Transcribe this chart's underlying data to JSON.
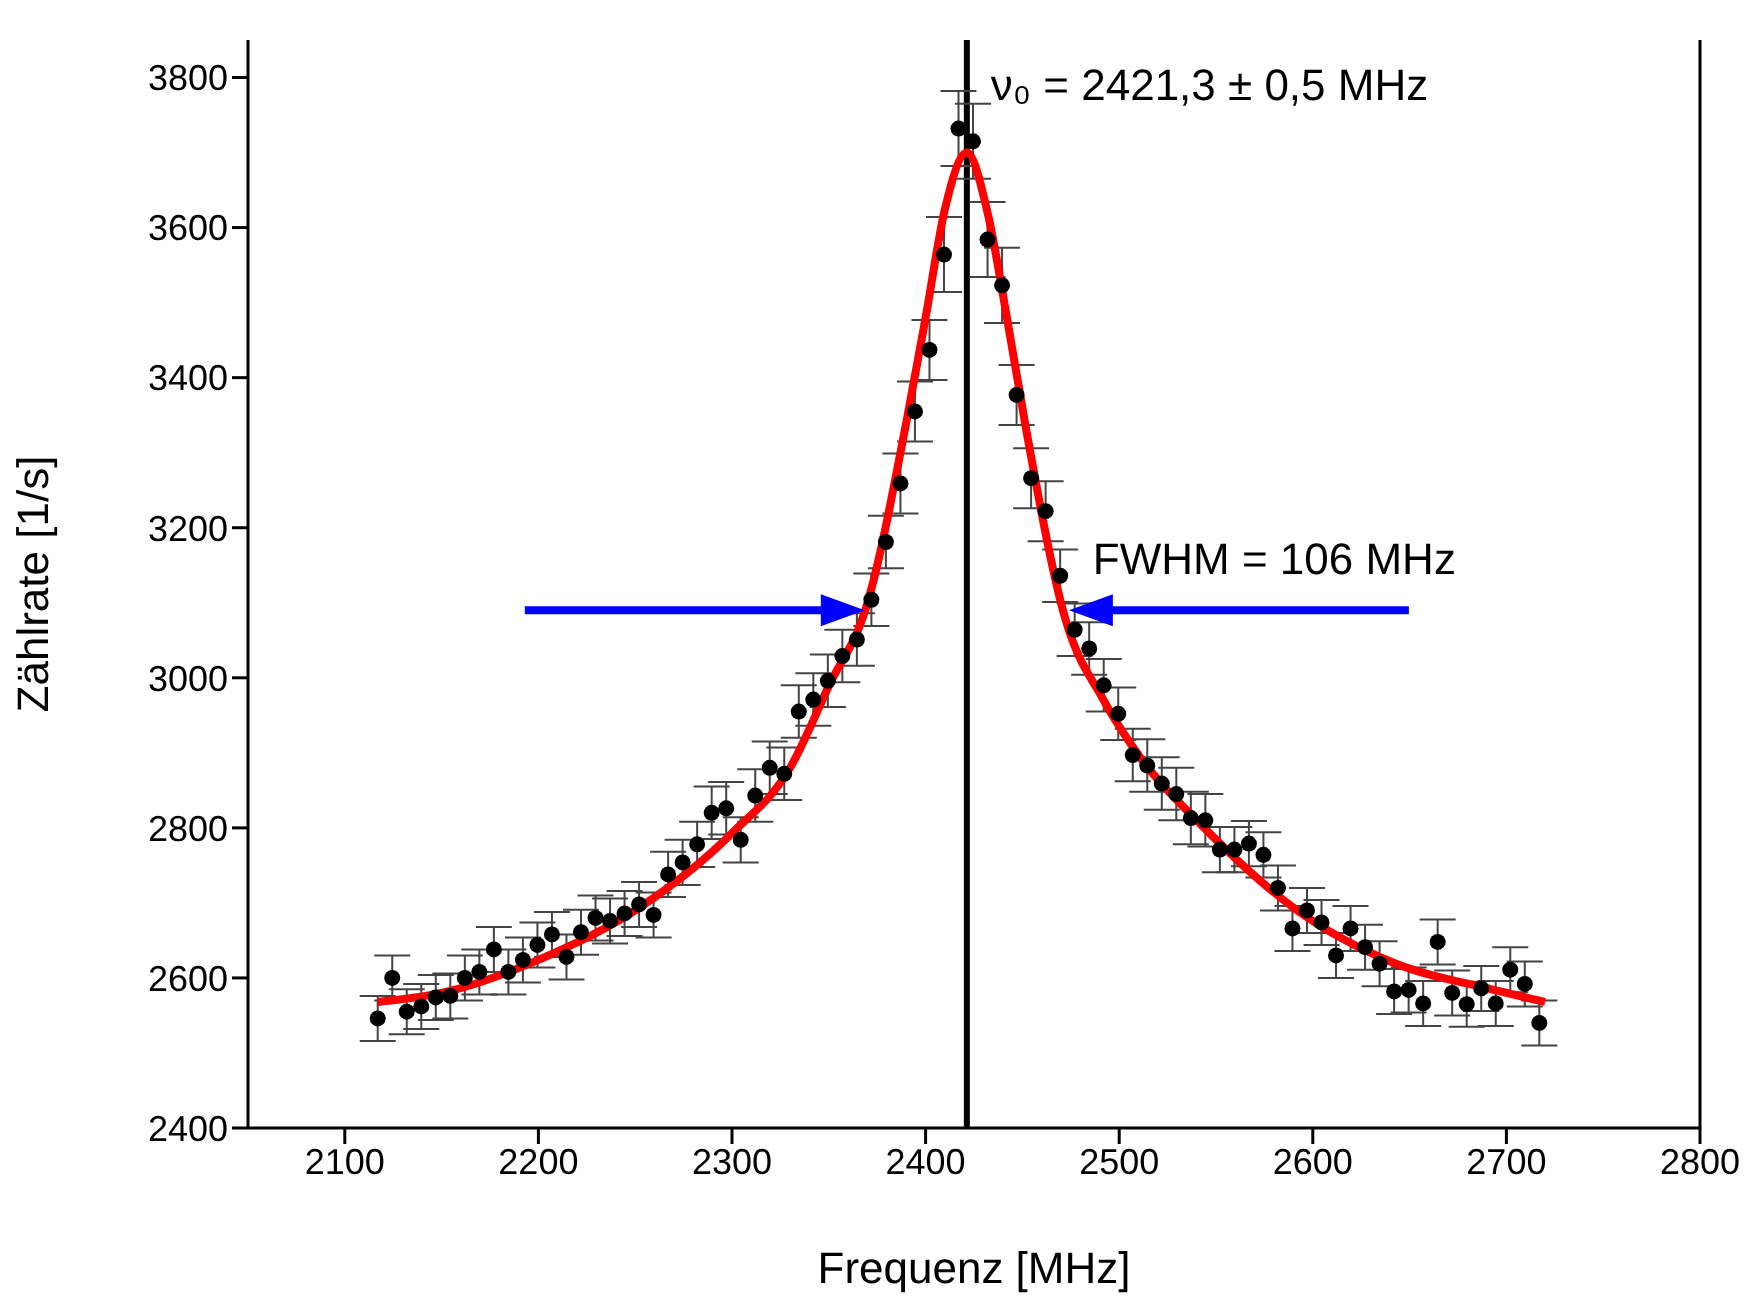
{
  "chart_data": {
    "type": "scatter",
    "xlabel": "Frequenz [MHz]",
    "ylabel": "Zählrate [1/s]",
    "xlim": [
      2050,
      2800
    ],
    "xticks": [
      2100,
      2200,
      2300,
      2400,
      2500,
      2600,
      2700,
      2800
    ],
    "ylim": [
      2400,
      3850
    ],
    "yticks": [
      2400,
      2600,
      2800,
      3000,
      3200,
      3400,
      3600,
      3800
    ],
    "grid": false,
    "legend": false,
    "x": [
      2117,
      2124.5,
      2132,
      2139.5,
      2147,
      2154.5,
      2162,
      2169.5,
      2177,
      2184.5,
      2192,
      2199.5,
      2207,
      2214.5,
      2222,
      2229.5,
      2237,
      2244.5,
      2252,
      2259.5,
      2267,
      2274.5,
      2282,
      2289.5,
      2297,
      2304.5,
      2312,
      2319.5,
      2327,
      2334.5,
      2342,
      2349.5,
      2357,
      2364.5,
      2372,
      2379.5,
      2387,
      2394.5,
      2402,
      2409.5,
      2417,
      2424.5,
      2432,
      2439.5,
      2447,
      2454.5,
      2462,
      2469.5,
      2477,
      2484.5,
      2492,
      2499.5,
      2507,
      2514.5,
      2522,
      2529.5,
      2537,
      2544.5,
      2552,
      2559.5,
      2567,
      2574.5,
      2582,
      2589.5,
      2597,
      2604.5,
      2612,
      2619.5,
      2627,
      2634.5,
      2642,
      2649.5,
      2657,
      2664.5,
      2672,
      2679.5,
      2687,
      2694.5,
      2702,
      2709.5,
      2717
    ],
    "series": [
      {
        "color": "#000000",
        "marker": "circle",
        "values": [
          2546,
          2600,
          2555,
          2562,
          2574,
          2576,
          2600,
          2608,
          2638,
          2608,
          2624,
          2644,
          2658,
          2628,
          2661,
          2680,
          2676,
          2686,
          2698,
          2684,
          2738,
          2754,
          2778,
          2820,
          2826,
          2784,
          2843,
          2880,
          2872,
          2955,
          2971,
          2996,
          3029,
          3051,
          3104,
          3181,
          3259,
          3355,
          3437,
          3564,
          3732,
          3715,
          3584,
          3523,
          3377,
          3266,
          3222,
          3136,
          3064,
          3039,
          2990,
          2952,
          2897,
          2883,
          2859,
          2845,
          2813,
          2810,
          2771,
          2771,
          2779,
          2764,
          2720,
          2666,
          2690,
          2674,
          2630,
          2666,
          2641,
          2619,
          2582,
          2584,
          2566,
          2648,
          2580,
          2565,
          2586,
          2566,
          2611,
          2592,
          2540
        ],
        "errors": [
          30,
          30,
          30,
          30,
          30,
          30,
          30,
          30,
          30,
          30,
          30,
          30,
          30,
          30,
          30,
          30,
          30,
          30,
          30,
          30,
          30,
          30,
          30,
          35,
          35,
          30,
          35,
          35,
          35,
          35,
          35,
          35,
          35,
          35,
          35,
          35,
          40,
          40,
          40,
          50,
          50,
          50,
          50,
          50,
          40,
          40,
          40,
          35,
          35,
          35,
          35,
          35,
          35,
          35,
          35,
          35,
          35,
          35,
          30,
          30,
          30,
          30,
          30,
          30,
          30,
          30,
          30,
          30,
          30,
          30,
          30,
          30,
          30,
          30,
          30,
          30,
          30,
          30,
          30,
          30,
          30
        ]
      },
      {
        "type": "line",
        "color": "#ff0000",
        "marker": "none",
        "line_style": "solid",
        "x": [
          2117,
          2150,
          2200,
          2250,
          2300,
          2330,
          2350,
          2370,
          2390,
          2400,
          2410,
          2421.3,
          2432,
          2442,
          2452,
          2472,
          2492,
          2512,
          2542,
          2592,
          2642,
          2692,
          2720
        ],
        "values": [
          2568,
          2580,
          2624,
          2690,
          2793,
          2880,
          2989,
          3100,
          3340,
          3480,
          3625,
          3700,
          3620,
          3480,
          3330,
          3080,
          2970,
          2890,
          2805,
          2690,
          2620,
          2585,
          2568
        ]
      }
    ],
    "ref_lines": [
      {
        "axis": "x",
        "value": 2421.3,
        "label": "ν₀ = 2421,3 ± 0,5 MHz",
        "color": "#000000"
      }
    ],
    "annotations": [
      {
        "text": "FWHM = 106 MHz",
        "x": 2474,
        "y": 3090
      }
    ]
  }
}
